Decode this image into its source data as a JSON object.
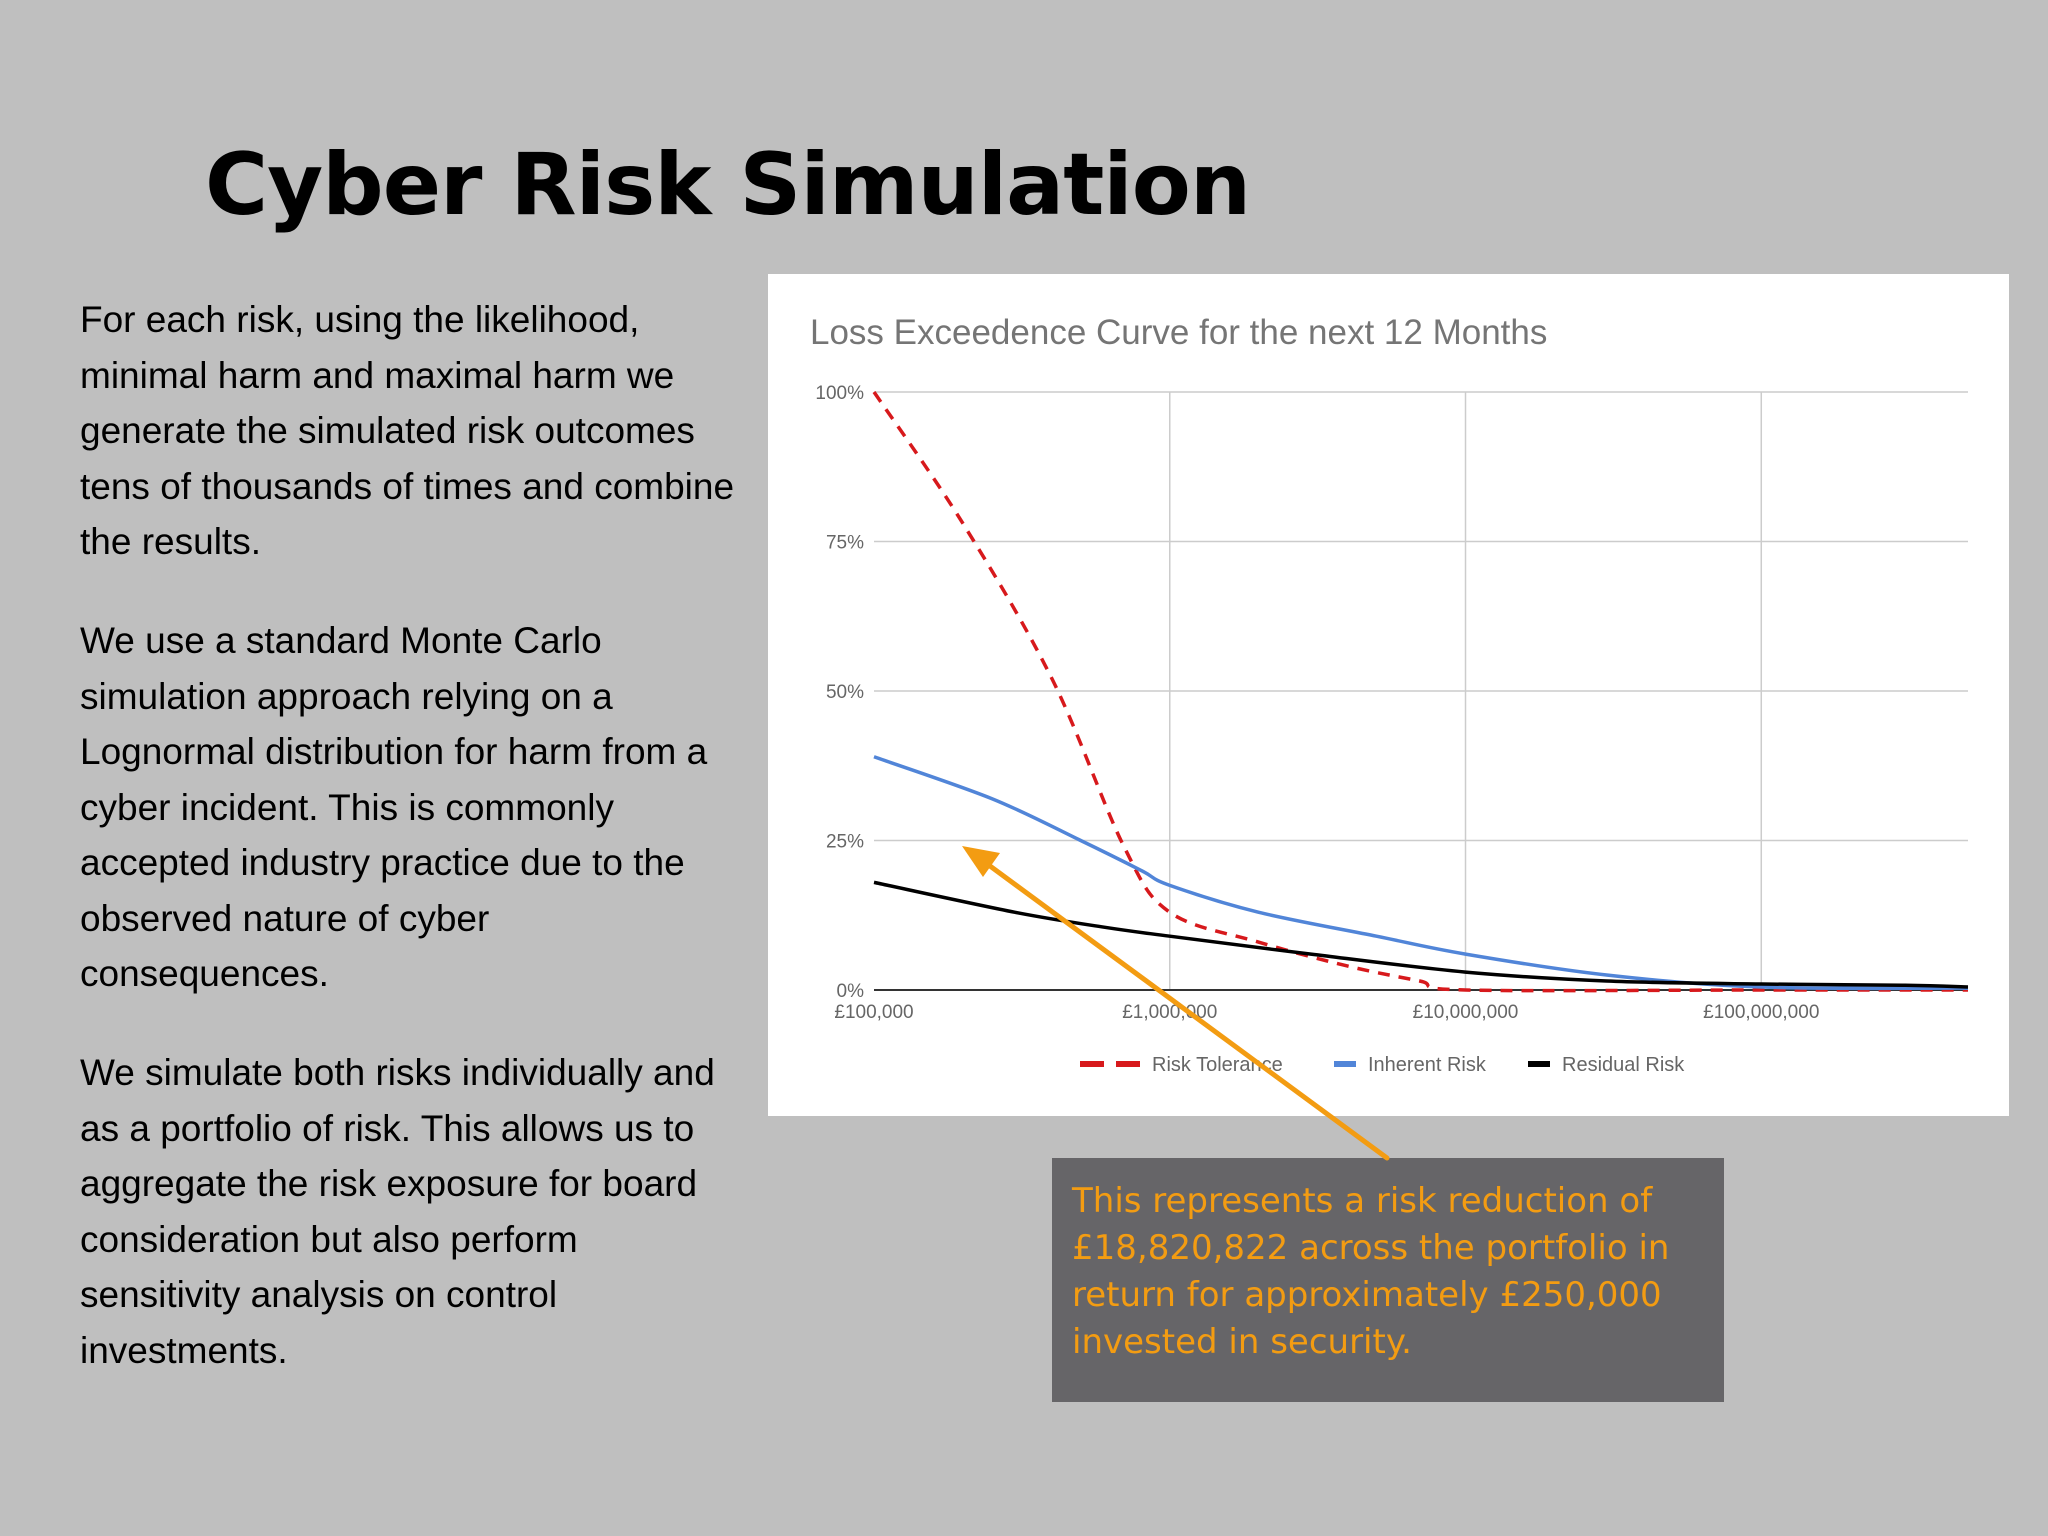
{
  "slide": {
    "title": "Cyber Risk Simulation",
    "paragraphs": [
      "For each risk, using the likelihood, minimal harm and maximal harm we generate the simulated risk outcomes tens of thousands of times and combine the results.",
      "We use a standard Monte Carlo simulation approach relying on a Lognormal distribution for harm from a cyber incident. This is commonly accepted industry practice due to the observed nature of cyber consequences.",
      "We simulate both risks individually and as a portfolio of risk. This allows us to aggregate the risk exposure for board consideration but also perform sensitivity analysis on control investments."
    ],
    "callout": "This represents a risk reduction of £18,820,822 across the portfolio in return for approximately £250,000 invested in security.",
    "colors": {
      "background": "#bfbfbf",
      "callout_box": "#666568",
      "callout_text": "#f39c12",
      "arrow": "#f39c12"
    }
  },
  "chart_data": {
    "type": "line",
    "title": "Loss Exceedence Curve for the next 12 Months",
    "x_scale": "log",
    "xlim": [
      100000,
      500000000
    ],
    "ylim": [
      0,
      100
    ],
    "x_ticks": [
      100000,
      1000000,
      10000000,
      100000000
    ],
    "x_tick_labels": [
      "£100,000",
      "£1,000,000",
      "£10,000,000",
      "£100,000,000"
    ],
    "y_ticks": [
      0,
      25,
      50,
      75,
      100
    ],
    "y_tick_labels": [
      "0%",
      "25%",
      "50%",
      "75%",
      "100%"
    ],
    "grid": true,
    "legend_position": "bottom",
    "series": [
      {
        "name": "Risk Tolerance",
        "color": "#d7191c",
        "dashed": true,
        "points": [
          [
            100000,
            100
          ],
          [
            200000,
            78
          ],
          [
            400000,
            52
          ],
          [
            700000,
            24
          ],
          [
            1000000,
            13
          ],
          [
            2000000,
            8
          ],
          [
            4000000,
            4
          ],
          [
            7000000,
            1.5
          ],
          [
            10000000,
            0
          ],
          [
            100000000,
            0
          ],
          [
            500000000,
            0
          ]
        ]
      },
      {
        "name": "Inherent Risk",
        "color": "#5185d8",
        "dashed": false,
        "points": [
          [
            100000,
            39
          ],
          [
            250000,
            32
          ],
          [
            500000,
            25
          ],
          [
            800000,
            20
          ],
          [
            1000000,
            17.5
          ],
          [
            2000000,
            13
          ],
          [
            5000000,
            9
          ],
          [
            10000000,
            6
          ],
          [
            30000000,
            2.5
          ],
          [
            100000000,
            0.5
          ],
          [
            500000000,
            0.3
          ]
        ]
      },
      {
        "name": "Residual Risk",
        "color": "#000000",
        "dashed": false,
        "points": [
          [
            100000,
            18
          ],
          [
            300000,
            13
          ],
          [
            600000,
            10.5
          ],
          [
            1000000,
            9
          ],
          [
            3000000,
            6
          ],
          [
            10000000,
            3
          ],
          [
            30000000,
            1.5
          ],
          [
            100000000,
            1
          ],
          [
            300000000,
            0.8
          ],
          [
            500000000,
            0.5
          ]
        ]
      }
    ]
  }
}
